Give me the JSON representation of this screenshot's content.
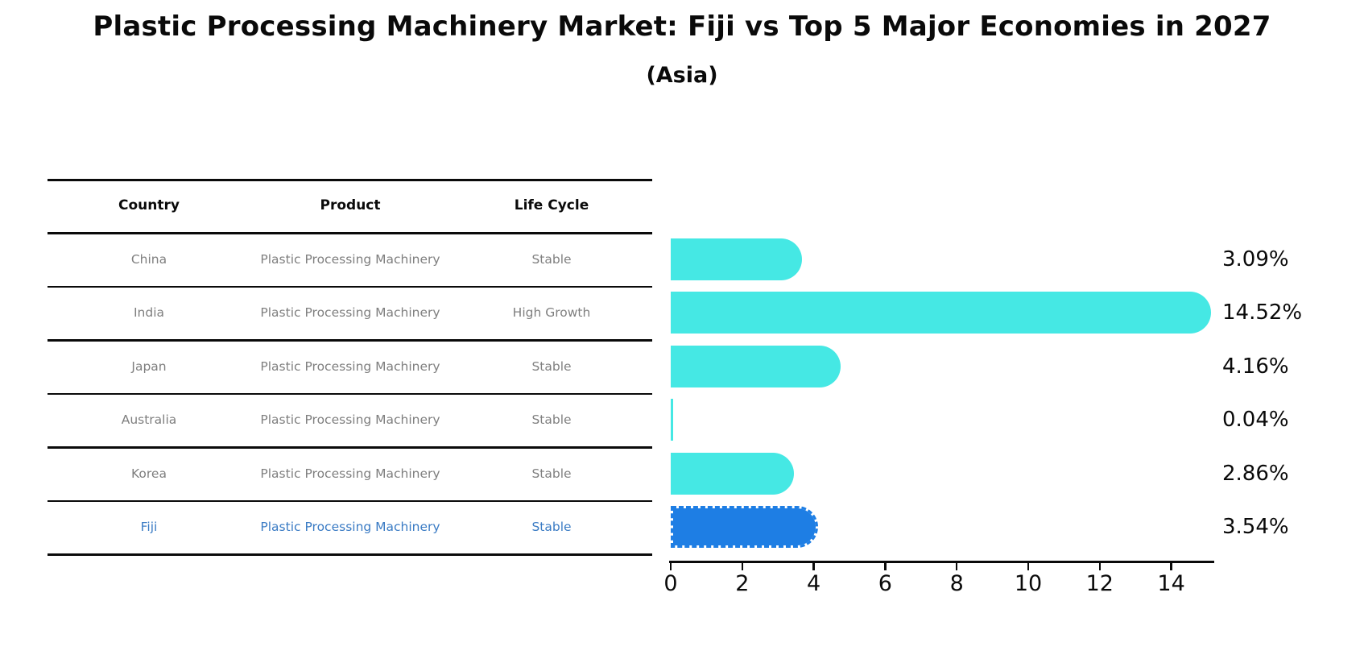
{
  "title": "Plastic Processing Machinery Market: Fiji vs Top 5 Major Economies in 2027",
  "subtitle": "(Asia)",
  "colors": {
    "bar_default": "#45e8e4",
    "bar_highlight": "#1e7ee4",
    "highlight_text": "#3a7bc4",
    "cell_text": "#7f7f7f",
    "axis_text": "#0a0a0a"
  },
  "table": {
    "headers": [
      "Country",
      "Product",
      "Life Cycle"
    ],
    "rows": [
      {
        "country": "China",
        "product": "Plastic Processing Machinery",
        "life_cycle": "Stable",
        "highlight": false
      },
      {
        "country": "India",
        "product": "Plastic Processing Machinery",
        "life_cycle": "High Growth",
        "highlight": false
      },
      {
        "country": "Japan",
        "product": "Plastic Processing Machinery",
        "life_cycle": "Stable",
        "highlight": false
      },
      {
        "country": "Australia",
        "product": "Plastic Processing Machinery",
        "life_cycle": "Stable",
        "highlight": false
      },
      {
        "country": "Korea",
        "product": "Plastic Processing Machinery",
        "life_cycle": "Stable",
        "highlight": false
      },
      {
        "country": "Fiji",
        "product": "Plastic Processing Machinery",
        "life_cycle": "Stable",
        "highlight": true
      }
    ]
  },
  "chart_data": {
    "type": "bar",
    "orientation": "horizontal",
    "title": "Plastic Processing Machinery Market: Fiji vs Top 5 Major Economies in 2027 (Asia)",
    "categories": [
      "China",
      "India",
      "Japan",
      "Australia",
      "Korea",
      "Fiji"
    ],
    "values": [
      3.09,
      14.52,
      4.16,
      0.04,
      2.86,
      3.54
    ],
    "value_labels": [
      "3.09%",
      "14.52%",
      "4.16%",
      "0.04%",
      "2.86%",
      "3.54%"
    ],
    "highlight_category": "Fiji",
    "xlabel": "",
    "ylabel": "",
    "xlim": [
      0,
      15.2
    ],
    "x_ticks": [
      0,
      2,
      4,
      6,
      8,
      10,
      12,
      14
    ],
    "grid": false,
    "legend": false
  }
}
